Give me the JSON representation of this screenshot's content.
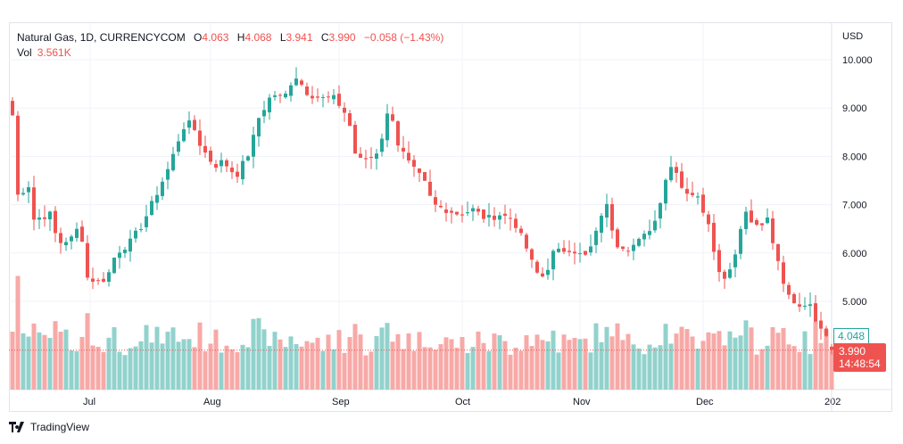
{
  "header": {
    "symbol": "Natural Gas, 1D, CURRENCYCOM",
    "o_label": "O",
    "o": "4.063",
    "h_label": "H",
    "h": "4.068",
    "l_label": "L",
    "l": "3.941",
    "c_label": "C",
    "c": "3.990",
    "change": "−0.058 (−1.43%)",
    "vol_label": "Vol",
    "vol": "3.561K"
  },
  "price_axis": {
    "currency": "USD",
    "ticks": [
      "10.000",
      "9.000",
      "8.000",
      "7.000",
      "6.000",
      "5.000"
    ]
  },
  "price_tags": {
    "prev": "4.048",
    "last": "3.990",
    "countdown": "14:48:54"
  },
  "brand": "TradingView",
  "colors": {
    "up": "#26a69a",
    "down": "#ef5350",
    "vol_up": "#92d2cc",
    "vol_down": "#f7a9a7"
  },
  "chart_data": {
    "type": "candlestick",
    "title": "Natural Gas, 1D, CURRENCYCOM",
    "ylabel": "USD",
    "ylim": [
      4.0,
      10.5
    ],
    "x_tick_labels": [
      "Jul",
      "Aug",
      "Sep",
      "Oct",
      "Nov",
      "Dec",
      "202"
    ],
    "x_tick_index": [
      14.5,
      37,
      61,
      84,
      106,
      129,
      153
    ],
    "close_trend": [
      [
        0,
        8.85
      ],
      [
        1,
        7.2
      ],
      [
        3,
        7.4
      ],
      [
        4,
        6.7
      ],
      [
        7,
        6.8
      ],
      [
        8.5,
        6.2
      ],
      [
        11,
        6.3
      ],
      [
        12.7,
        6.6
      ],
      [
        13.8,
        5.5
      ],
      [
        16,
        5.4
      ],
      [
        17.7,
        5.5
      ],
      [
        19.3,
        6.0
      ],
      [
        21.8,
        6.2
      ],
      [
        24.3,
        6.6
      ],
      [
        26.8,
        7.2
      ],
      [
        29.3,
        7.8
      ],
      [
        31.8,
        8.6
      ],
      [
        33.5,
        8.7
      ],
      [
        35.2,
        8.2
      ],
      [
        37.7,
        7.8
      ],
      [
        39.3,
        7.9
      ],
      [
        41.8,
        7.6
      ],
      [
        44.3,
        8.1
      ],
      [
        46,
        8.8
      ],
      [
        48.5,
        9.3
      ],
      [
        50.7,
        9.2
      ],
      [
        52.7,
        9.7
      ],
      [
        55.2,
        9.3
      ],
      [
        57.7,
        9.2
      ],
      [
        60.2,
        9.2
      ],
      [
        62.7,
        8.8
      ],
      [
        64.3,
        7.9
      ],
      [
        67.7,
        8.0
      ],
      [
        69.3,
        8.5
      ],
      [
        70.5,
        9.1
      ],
      [
        71.8,
        8.3
      ],
      [
        74.3,
        7.8
      ],
      [
        76.8,
        7.5
      ],
      [
        78.5,
        7.0
      ],
      [
        81,
        6.9
      ],
      [
        83.5,
        6.8
      ],
      [
        86,
        6.9
      ],
      [
        88.5,
        6.7
      ],
      [
        91,
        6.8
      ],
      [
        93.5,
        6.7
      ],
      [
        96,
        6.1
      ],
      [
        97.7,
        5.6
      ],
      [
        99.3,
        5.5
      ],
      [
        101,
        6.0
      ],
      [
        104.3,
        6.1
      ],
      [
        106.8,
        5.9
      ],
      [
        108.5,
        6.2
      ],
      [
        110.7,
        7.1
      ],
      [
        112.7,
        6.2
      ],
      [
        115.2,
        6.1
      ],
      [
        117.7,
        6.3
      ],
      [
        120.2,
        6.7
      ],
      [
        121.8,
        7.5
      ],
      [
        123.5,
        7.9
      ],
      [
        125.2,
        7.3
      ],
      [
        127.7,
        7.2
      ],
      [
        130.2,
        6.6
      ],
      [
        131.8,
        5.6
      ],
      [
        133.5,
        5.5
      ],
      [
        135.2,
        6.1
      ],
      [
        136.8,
        6.9
      ],
      [
        139.3,
        6.5
      ],
      [
        141,
        6.7
      ],
      [
        142.7,
        5.9
      ],
      [
        144.3,
        5.2
      ],
      [
        146.8,
        4.9
      ],
      [
        148.5,
        5.0
      ],
      [
        150.2,
        4.6
      ],
      [
        151.8,
        4.4
      ],
      [
        153,
        3.99
      ]
    ],
    "last_candle": {
      "open": 4.063,
      "high": 4.068,
      "low": 3.941,
      "close": 3.99,
      "volume": "3.561K"
    }
  }
}
